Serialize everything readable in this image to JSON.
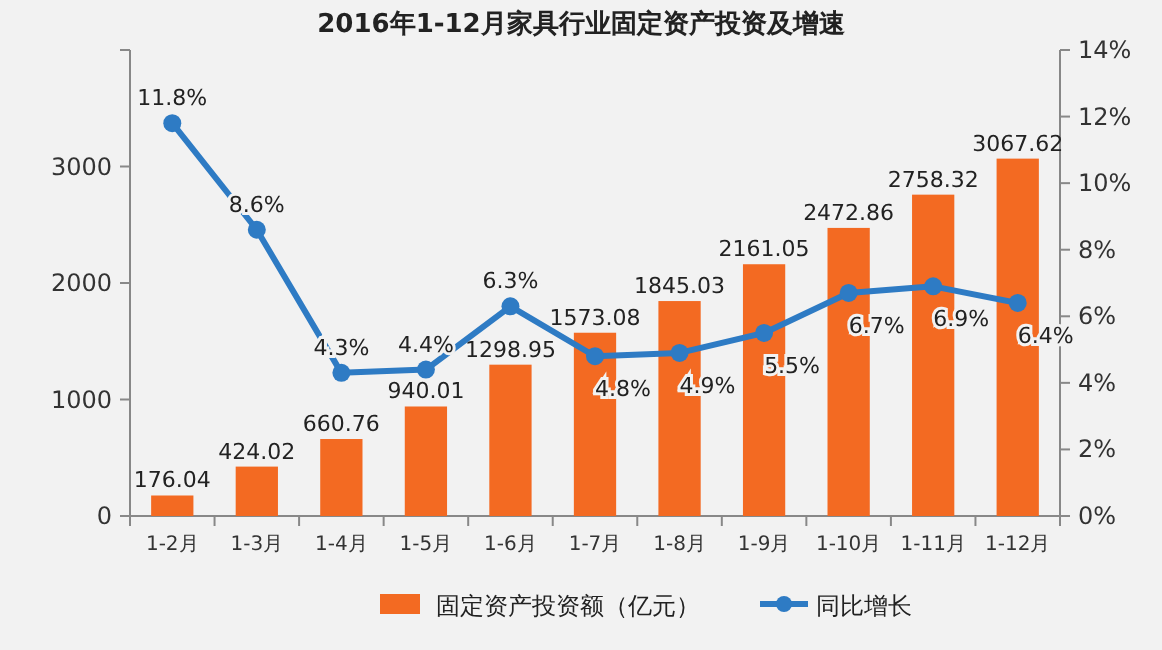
{
  "chart_data": {
    "type": "bar",
    "title": "2016年1-12月家具行业固定资产投资及增速",
    "categories": [
      "1-2月",
      "1-3月",
      "1-4月",
      "1-5月",
      "1-6月",
      "1-7月",
      "1-8月",
      "1-9月",
      "1-10月",
      "1-11月",
      "1-12月"
    ],
    "series": [
      {
        "name": "固定资产投资额（亿元）",
        "color": "#f36a22",
        "values": [
          176.04,
          424.02,
          660.76,
          940.01,
          1298.95,
          1573.08,
          1845.03,
          2161.05,
          2472.86,
          2758.32,
          3067.62
        ],
        "value_labels": [
          "176.04",
          "424.02",
          "660.76",
          "940.01",
          "1298.95",
          "1573.08",
          "1845.03",
          "2161.05",
          "2472.86",
          "2758.32",
          "3067.62"
        ]
      },
      {
        "name": "同比增长",
        "type": "line",
        "axis": "y2",
        "color": "#2e7bc4",
        "marker": "circle",
        "values": [
          11.8,
          8.6,
          4.3,
          4.4,
          6.3,
          4.8,
          4.9,
          5.5,
          6.7,
          6.9,
          6.4
        ],
        "value_labels": [
          "11.8%",
          "8.6%",
          "4.3%",
          "4.4%",
          "6.3%",
          "4.8%",
          "4.9%",
          "5.5%",
          "6.7%",
          "6.9%",
          "6.4%"
        ]
      }
    ],
    "ylim": [
      0,
      4000
    ],
    "yticks": [
      0,
      1000,
      2000,
      3000,
      {
        "value": 4000,
        "label": null
      }
    ],
    "y2lim": [
      0,
      14
    ],
    "y2ticks": [
      {
        "value": 0,
        "label": "0%"
      },
      {
        "value": 2,
        "label": "2%"
      },
      {
        "value": 4,
        "label": "4%"
      },
      {
        "value": 6,
        "label": "6%"
      },
      {
        "value": 8,
        "label": "8%"
      },
      {
        "value": 10,
        "label": "10%"
      },
      {
        "value": 12,
        "label": "12%"
      },
      {
        "value": 14,
        "label": "14%"
      }
    ],
    "legend": "bottom",
    "grid": false
  }
}
